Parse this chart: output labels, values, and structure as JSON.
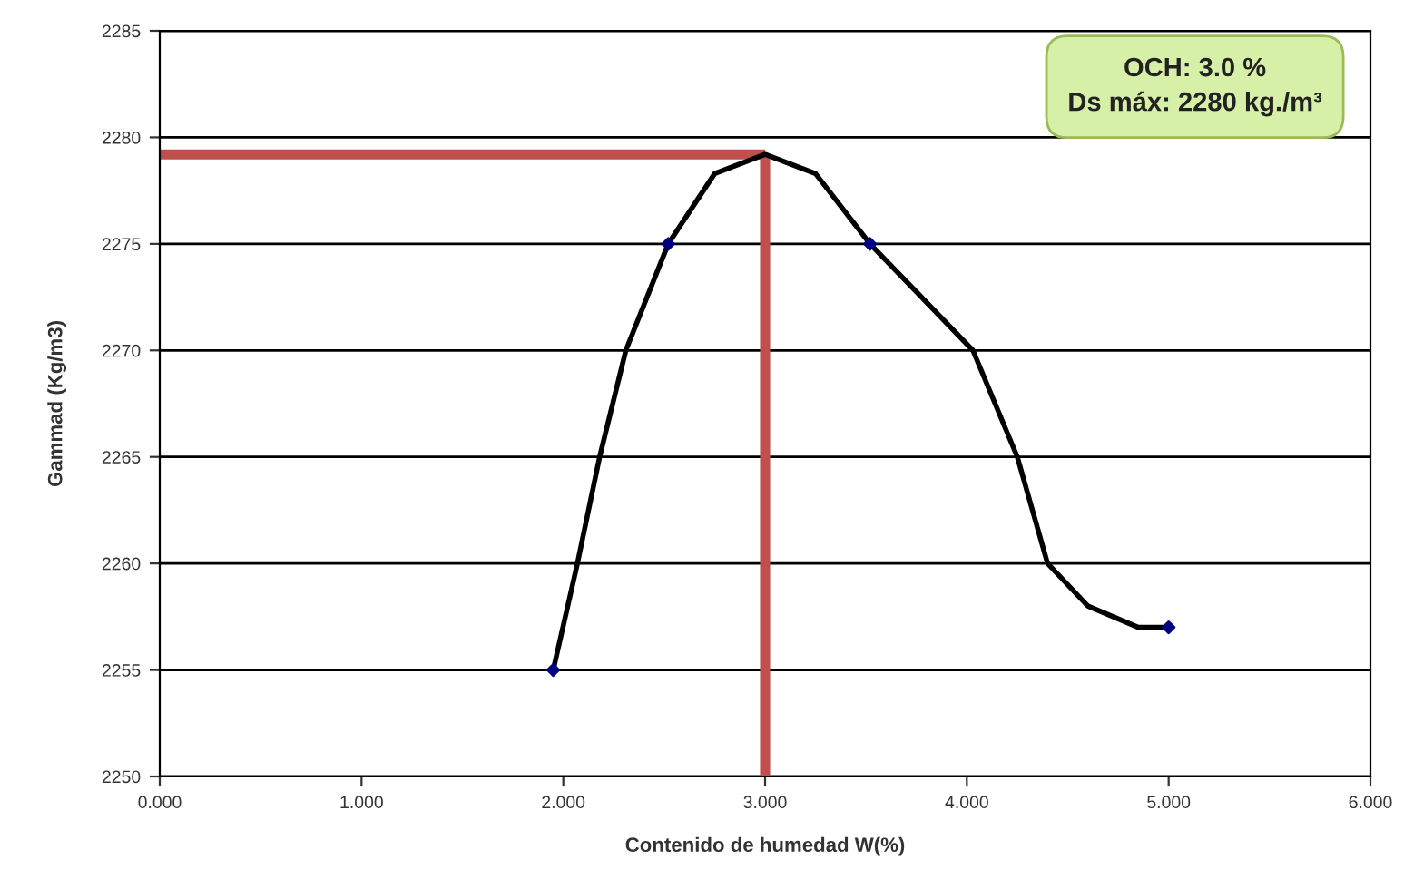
{
  "chart_data": {
    "type": "line",
    "xlabel": "Contenido de humedad W(%)",
    "ylabel": "Gammad (Kg/m3)",
    "series": [
      {
        "color": "#000000",
        "x": [
          1.95,
          2.07,
          2.18,
          2.31,
          2.52,
          2.75,
          3.0,
          3.25,
          3.52,
          4.03,
          4.25,
          4.4,
          4.6,
          4.85,
          5.0
        ],
        "values": [
          2255,
          2260,
          2265,
          2270,
          2275,
          2278.3,
          2279.2,
          2278.3,
          2275,
          2270,
          2265,
          2260,
          2258,
          2257,
          2257
        ]
      },
      {
        "type": "scatter",
        "color": "#000080",
        "marker": "diamond",
        "x": [
          1.95,
          2.52,
          3.52,
          5.0
        ],
        "values": [
          2255,
          2275,
          2275,
          2257
        ]
      }
    ],
    "xlim": [
      0,
      6
    ],
    "xticks": [
      {
        "value": 0,
        "label": "0.000"
      },
      {
        "value": 1,
        "label": "1.000"
      },
      {
        "value": 2,
        "label": "2.000"
      },
      {
        "value": 3,
        "label": "3.000"
      },
      {
        "value": 4,
        "label": "4.000"
      },
      {
        "value": 5,
        "label": "5.000"
      },
      {
        "value": 6,
        "label": "6.000"
      }
    ],
    "ylim": [
      2250,
      2285
    ],
    "yticks": [
      2250,
      2255,
      2260,
      2265,
      2270,
      2275,
      2280,
      2285
    ],
    "grid": "y",
    "ref_lines": [
      {
        "axis": "x",
        "value": 3.0,
        "color": "#c0504d"
      },
      {
        "axis": "y",
        "value": 2279.2,
        "color": "#c0504d"
      }
    ],
    "annotations": [
      "OCH: 3.0 %\nDs máx: 2280 kg./m³"
    ]
  }
}
